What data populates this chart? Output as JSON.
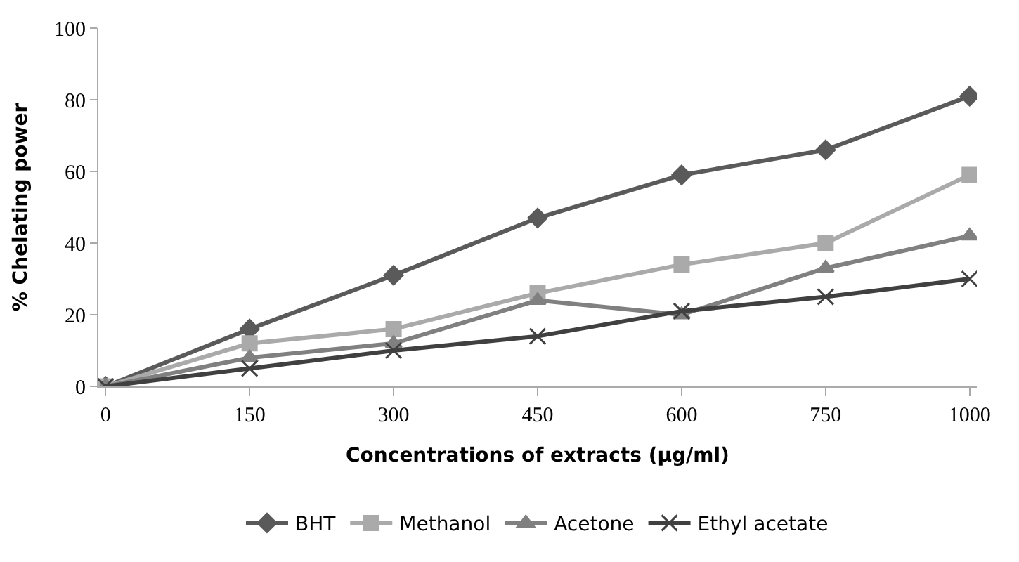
{
  "chart_data": {
    "type": "line",
    "xlabel": "Concentrations of extracts (µg/ml)",
    "ylabel": "% Chelating power",
    "categories": [
      "0",
      "150",
      "300",
      "450",
      "600",
      "750",
      "1000"
    ],
    "ylim": [
      0,
      100
    ],
    "yticks": [
      0,
      20,
      40,
      60,
      80,
      100
    ],
    "legend": "bottom",
    "series": [
      {
        "name": "BHT",
        "color": "#5a5a5a",
        "marker": "diamond",
        "values": [
          0,
          16,
          31,
          47,
          59,
          66,
          81
        ]
      },
      {
        "name": "Methanol",
        "color": "#aaaaaa",
        "marker": "square",
        "values": [
          0,
          12,
          16,
          26,
          34,
          40,
          59
        ]
      },
      {
        "name": "Acetone",
        "color": "#808080",
        "marker": "triangle",
        "values": [
          0,
          8,
          12,
          24,
          20,
          33,
          42
        ]
      },
      {
        "name": "Ethyl acetate",
        "color": "#404040",
        "marker": "cross",
        "values": [
          0,
          5,
          10,
          14,
          21,
          25,
          30
        ]
      }
    ]
  }
}
